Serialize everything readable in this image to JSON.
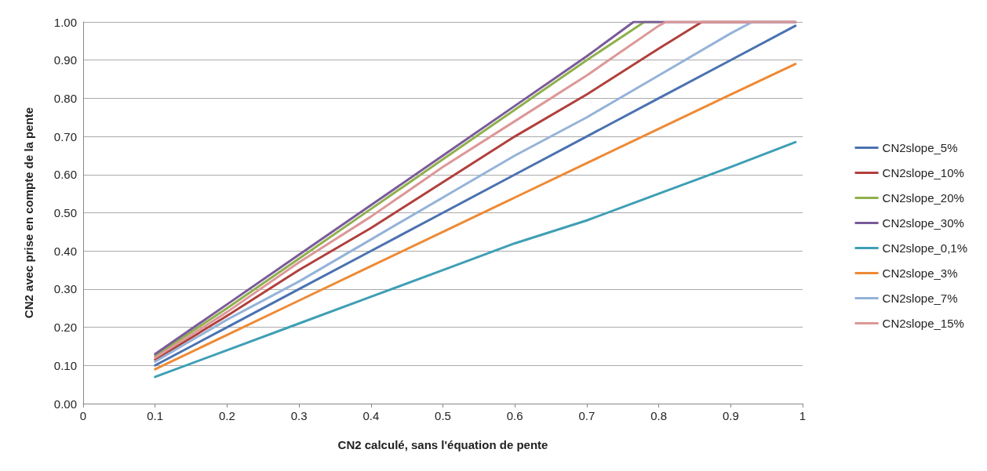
{
  "chart_data": {
    "type": "line",
    "xlabel": "CN2 calculé, sans l'équation de pente",
    "ylabel": "CN2 avec prise en compte de la pente",
    "xlim": [
      0,
      1
    ],
    "xticks": [
      0,
      0.1,
      0.2,
      0.3,
      0.4,
      0.5,
      0.6,
      0.7,
      0.8,
      0.9,
      1
    ],
    "ylim": [
      0,
      1
    ],
    "yticks": [
      {
        "value": 0,
        "label": "0.00"
      },
      {
        "value": 0.1,
        "label": "0.10"
      },
      {
        "value": 0.2,
        "label": "0.20"
      },
      {
        "value": 0.3,
        "label": "0.30"
      },
      {
        "value": 0.4,
        "label": "0.40"
      },
      {
        "value": 0.5,
        "label": "0.50"
      },
      {
        "value": 0.6,
        "label": "0.60"
      },
      {
        "value": 0.7,
        "label": "0.70"
      },
      {
        "value": 0.8,
        "label": "0.80"
      },
      {
        "value": 0.9,
        "label": "0.90"
      },
      {
        "value": 1,
        "label": "1.00"
      }
    ],
    "grid": "y",
    "legend": "right",
    "marker": "none",
    "line_style": "solid",
    "series": [
      {
        "name": "CN2slope_5%",
        "color": "#4a72b0",
        "x": [
          0.1,
          0.2,
          0.3,
          0.4,
          0.5,
          0.6,
          0.7,
          0.8,
          0.9,
          0.99
        ],
        "values": [
          0.1,
          0.2,
          0.3,
          0.4,
          0.5,
          0.6,
          0.7,
          0.8,
          0.9,
          0.99
        ]
      },
      {
        "name": "CN2slope_10%",
        "color": "#b0403c",
        "x": [
          0.1,
          0.2,
          0.3,
          0.4,
          0.5,
          0.6,
          0.7,
          0.8,
          0.86,
          0.9,
          0.99
        ],
        "values": [
          0.115,
          0.23,
          0.35,
          0.46,
          0.58,
          0.7,
          0.81,
          0.93,
          1,
          1,
          1
        ]
      },
      {
        "name": "CN2slope_20%",
        "color": "#8fb04c",
        "x": [
          0.1,
          0.2,
          0.3,
          0.4,
          0.5,
          0.6,
          0.7,
          0.78,
          0.8
        ],
        "values": [
          0.125,
          0.25,
          0.38,
          0.51,
          0.64,
          0.77,
          0.9,
          1,
          1
        ]
      },
      {
        "name": "CN2slope_30%",
        "color": "#7a5a9a",
        "x": [
          0.1,
          0.2,
          0.3,
          0.4,
          0.5,
          0.6,
          0.7,
          0.765,
          0.8,
          0.9,
          0.99
        ],
        "values": [
          0.13,
          0.26,
          0.39,
          0.52,
          0.65,
          0.78,
          0.91,
          1,
          1,
          1,
          1
        ]
      },
      {
        "name": "CN2slope_0,1%",
        "color": "#3f9fb5",
        "x": [
          0.1,
          0.2,
          0.3,
          0.4,
          0.5,
          0.6,
          0.7,
          0.8,
          0.9,
          0.99
        ],
        "values": [
          0.07,
          0.14,
          0.21,
          0.28,
          0.35,
          0.42,
          0.48,
          0.55,
          0.62,
          0.685
        ]
      },
      {
        "name": "CN2slope_3%",
        "color": "#ee8a35",
        "x": [
          0.1,
          0.2,
          0.3,
          0.4,
          0.5,
          0.6,
          0.7,
          0.8,
          0.9,
          0.99
        ],
        "values": [
          0.09,
          0.18,
          0.27,
          0.36,
          0.45,
          0.54,
          0.63,
          0.72,
          0.81,
          0.89
        ]
      },
      {
        "name": "CN2slope_7%",
        "color": "#95b3d9",
        "x": [
          0.1,
          0.2,
          0.3,
          0.4,
          0.5,
          0.6,
          0.7,
          0.8,
          0.9,
          0.93,
          0.99
        ],
        "values": [
          0.11,
          0.22,
          0.32,
          0.43,
          0.54,
          0.65,
          0.75,
          0.86,
          0.97,
          1,
          1
        ]
      },
      {
        "name": "CN2slope_15%",
        "color": "#dc9897",
        "x": [
          0.1,
          0.2,
          0.3,
          0.4,
          0.5,
          0.6,
          0.7,
          0.8,
          0.81,
          0.9,
          0.99
        ],
        "values": [
          0.12,
          0.24,
          0.37,
          0.49,
          0.62,
          0.74,
          0.86,
          0.99,
          1,
          1,
          1
        ]
      }
    ]
  }
}
